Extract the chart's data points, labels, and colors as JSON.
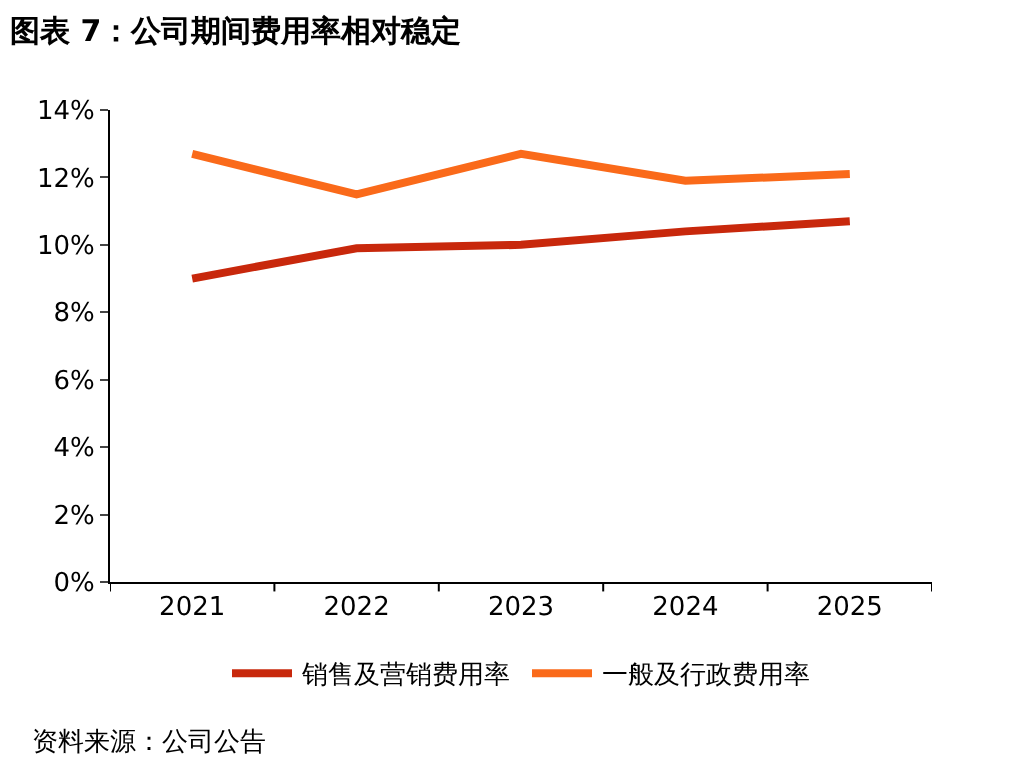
{
  "chart_data": {
    "type": "line",
    "title": "图表 7：公司期间费用率相对稳定",
    "categories": [
      "2021",
      "2022",
      "2023",
      "2024",
      "2025"
    ],
    "series": [
      {
        "name": "销售及营销费用率",
        "color": "#c8280c",
        "values": [
          9.0,
          9.9,
          10.0,
          10.4,
          10.7
        ]
      },
      {
        "name": "一般及行政费用率",
        "color": "#fa6a1a",
        "values": [
          12.7,
          11.5,
          12.7,
          11.9,
          12.1
        ]
      }
    ],
    "ylim": [
      0,
      14
    ],
    "yticks": [
      {
        "value": 0,
        "label": "0%"
      },
      {
        "value": 2,
        "label": "2%"
      },
      {
        "value": 4,
        "label": "4%"
      },
      {
        "value": 6,
        "label": "6%"
      },
      {
        "value": 8,
        "label": "8%"
      },
      {
        "value": 10,
        "label": "10%"
      },
      {
        "value": 12,
        "label": "12%"
      },
      {
        "value": 14,
        "label": "14%"
      }
    ],
    "legend": "bottom",
    "marker": "none",
    "line_style": "solid",
    "annotations": [
      "资料来源：公司公告"
    ]
  }
}
